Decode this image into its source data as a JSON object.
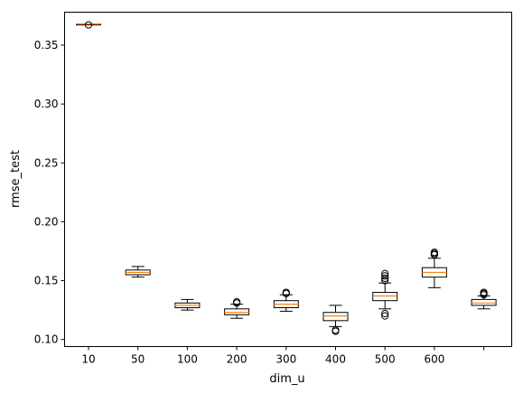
{
  "chart_data": {
    "type": "box",
    "title": "",
    "xlabel": "dim_u",
    "ylabel": "rmse_test",
    "ylim": [
      0.094,
      0.378
    ],
    "yticks": [
      0.1,
      0.15,
      0.2,
      0.25,
      0.3,
      0.35
    ],
    "ytick_labels": [
      "0.10",
      "0.15",
      "0.20",
      "0.25",
      "0.30",
      "0.35"
    ],
    "xtick_labels": [
      "10",
      "50",
      "100",
      "200",
      "300",
      "400",
      "500",
      "600",
      ""
    ],
    "grid": false,
    "colors": {
      "median": "#ff7f0e",
      "box": "#000000",
      "flier": "#000000"
    },
    "boxes": [
      {
        "category": "10",
        "whislo": 0.3675,
        "q1": 0.3677,
        "med": 0.3678,
        "q3": 0.3679,
        "whishi": 0.368,
        "fliers": [
          0.3672
        ]
      },
      {
        "category": "50",
        "whislo": 0.153,
        "q1": 0.155,
        "med": 0.157,
        "q3": 0.159,
        "whishi": 0.162,
        "fliers": []
      },
      {
        "category": "100",
        "whislo": 0.125,
        "q1": 0.127,
        "med": 0.129,
        "q3": 0.131,
        "whishi": 0.134,
        "fliers": []
      },
      {
        "category": "200",
        "whislo": 0.118,
        "q1": 0.121,
        "med": 0.123,
        "q3": 0.126,
        "whishi": 0.13,
        "fliers": [
          0.131,
          0.132
        ]
      },
      {
        "category": "300",
        "whislo": 0.124,
        "q1": 0.127,
        "med": 0.13,
        "q3": 0.133,
        "whishi": 0.138,
        "fliers": [
          0.139,
          0.14
        ]
      },
      {
        "category": "400",
        "whislo": 0.111,
        "q1": 0.116,
        "med": 0.12,
        "q3": 0.123,
        "whishi": 0.129,
        "fliers": [
          0.107,
          0.108
        ]
      },
      {
        "category": "500",
        "whislo": 0.126,
        "q1": 0.133,
        "med": 0.137,
        "q3": 0.14,
        "whishi": 0.148,
        "fliers": [
          0.12,
          0.122,
          0.15,
          0.152,
          0.154,
          0.156
        ]
      },
      {
        "category": "600",
        "whislo": 0.144,
        "q1": 0.153,
        "med": 0.157,
        "q3": 0.161,
        "whishi": 0.169,
        "fliers": [
          0.172,
          0.173,
          0.174
        ]
      },
      {
        "category": "",
        "whislo": 0.126,
        "q1": 0.129,
        "med": 0.131,
        "q3": 0.134,
        "whishi": 0.137,
        "fliers": [
          0.138,
          0.139,
          0.14
        ]
      }
    ]
  }
}
